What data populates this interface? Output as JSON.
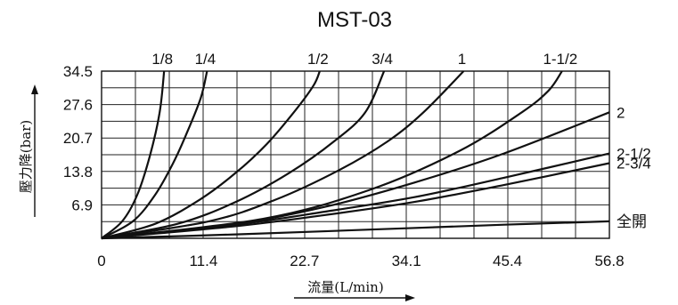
{
  "chart_data": {
    "type": "line",
    "title": "MST-03",
    "xlabel": "流量(L/min)",
    "ylabel": "壓力降(bar)",
    "xlim": [
      0,
      56.8
    ],
    "ylim": [
      0,
      34.5
    ],
    "x_ticks": [
      "0",
      "11.4",
      "22.7",
      "34.1",
      "45.4",
      "56.8"
    ],
    "y_ticks": [
      "6.9",
      "13.8",
      "20.7",
      "27.6",
      "34.5"
    ],
    "x_tick_values": [
      0,
      11.4,
      22.7,
      34.1,
      45.4,
      56.8
    ],
    "y_tick_values": [
      6.9,
      13.8,
      20.7,
      27.6,
      34.5
    ],
    "grid": true,
    "series": [
      {
        "name": "1/8",
        "points": [
          [
            0,
            0
          ],
          [
            2.3,
            3.5
          ],
          [
            4.0,
            9.0
          ],
          [
            5.4,
            17.0
          ],
          [
            6.5,
            26.0
          ],
          [
            7.0,
            34.5
          ]
        ]
      },
      {
        "name": "1/4",
        "points": [
          [
            0,
            0
          ],
          [
            3.5,
            3.5
          ],
          [
            6.0,
            9.0
          ],
          [
            8.0,
            15.5
          ],
          [
            9.6,
            22.0
          ],
          [
            11.1,
            29.0
          ],
          [
            11.8,
            34.5
          ]
        ]
      },
      {
        "name": "1/2",
        "points": [
          [
            0,
            0
          ],
          [
            6.0,
            3.0
          ],
          [
            11.0,
            8.0
          ],
          [
            15.0,
            13.5
          ],
          [
            18.5,
            19.5
          ],
          [
            21.5,
            26.0
          ],
          [
            23.7,
            31.5
          ],
          [
            24.4,
            34.5
          ]
        ]
      },
      {
        "name": "3/4",
        "points": [
          [
            0,
            0
          ],
          [
            8.5,
            3.0
          ],
          [
            15.0,
            7.5
          ],
          [
            21.0,
            13.5
          ],
          [
            26.0,
            20.0
          ],
          [
            29.5,
            26.0
          ],
          [
            31.6,
            34.5
          ]
        ]
      },
      {
        "name": "1",
        "points": [
          [
            0,
            0
          ],
          [
            12.0,
            3.5
          ],
          [
            19.5,
            8.0
          ],
          [
            26.5,
            14.0
          ],
          [
            32.0,
            20.0
          ],
          [
            36.0,
            26.0
          ],
          [
            40.5,
            34.5
          ]
        ]
      },
      {
        "name": "1-1/2",
        "points": [
          [
            0,
            0
          ],
          [
            18.0,
            4.0
          ],
          [
            30.0,
            10.0
          ],
          [
            40.0,
            18.0
          ],
          [
            47.0,
            26.0
          ],
          [
            50.0,
            30.5
          ],
          [
            51.5,
            34.5
          ]
        ]
      },
      {
        "name": "2",
        "points": [
          [
            0,
            0
          ],
          [
            15.0,
            3.0
          ],
          [
            25.0,
            6.5
          ],
          [
            35.0,
            11.5
          ],
          [
            45.0,
            17.5
          ],
          [
            56.8,
            26.0
          ]
        ]
      },
      {
        "name": "2-1/2",
        "points": [
          [
            0,
            0
          ],
          [
            15.0,
            2.8
          ],
          [
            25.0,
            5.5
          ],
          [
            35.0,
            8.5
          ],
          [
            45.0,
            12.5
          ],
          [
            56.8,
            17.5
          ]
        ]
      },
      {
        "name": "2-3/4",
        "points": [
          [
            0,
            0
          ],
          [
            15.0,
            2.5
          ],
          [
            25.0,
            4.8
          ],
          [
            35.0,
            7.5
          ],
          [
            45.0,
            11.0
          ],
          [
            56.8,
            15.5
          ]
        ]
      },
      {
        "name": "全開",
        "points": [
          [
            0,
            0
          ],
          [
            15.0,
            0.8
          ],
          [
            30.0,
            1.8
          ],
          [
            45.0,
            2.8
          ],
          [
            56.8,
            3.5
          ]
        ]
      }
    ]
  }
}
